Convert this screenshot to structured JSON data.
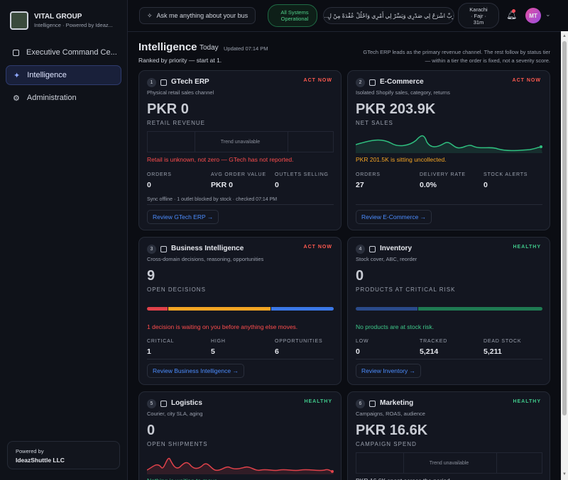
{
  "sidebar": {
    "brand": "VITAL GROUP",
    "tagline": "Intelligence · Powered by Ideaz...",
    "nav": [
      "Executive Command Ce...",
      "Intelligence",
      "Administration"
    ],
    "footer": {
      "label": "Powered by",
      "company": "IdeazShuttle LLC"
    }
  },
  "topbar": {
    "search": "Ask me anything about your bus",
    "status": "All Systems Operational",
    "verse": "رَبِّ اشْرَحْ لِي صَدْرِي وَيَسِّرْ لِي أَمْرِي وَاحْلُلْ عُقْدَةً مِنْ لِ...",
    "prayer": "Karachi · Fajr · 31m",
    "avatar": "MT"
  },
  "header": {
    "title": "Intelligence",
    "today": "Today",
    "updated": "Updated 07:14 PM",
    "subtitle": "Ranked by priority — start at 1.",
    "note": "GTech ERP leads as the primary revenue channel. The rest follow by status tier — within a tier the order is fixed, not a severity score."
  },
  "cards": [
    {
      "rank": "1",
      "title": "GTech ERP",
      "status": "ACT NOW",
      "subtitle": "Physical retail sales channel",
      "value": "PKR 0",
      "label": "RETAIL REVENUE",
      "trend": "Trend unavailable",
      "alert": "Retail is unknown, not zero — GTech has not reported.",
      "metrics": [
        {
          "label": "ORDERS",
          "value": "0"
        },
        {
          "label": "AVG ORDER VALUE",
          "value": "PKR 0"
        },
        {
          "label": "OUTLETS SELLING",
          "value": "0"
        }
      ],
      "footnote": "Sync offline · 1 outlet blocked by stock · checked 07:14 PM",
      "button": "Review GTech ERP →"
    },
    {
      "rank": "2",
      "title": "E-Commerce",
      "status": "ACT NOW",
      "subtitle": "Isolated Shopify sales, category, returns",
      "value": "PKR 203.9K",
      "label": "NET SALES",
      "alert": "PKR 201.5K is sitting uncollected.",
      "metrics": [
        {
          "label": "ORDERS",
          "value": "27"
        },
        {
          "label": "DELIVERY RATE",
          "value": "0.0%"
        },
        {
          "label": "STOCK ALERTS",
          "value": "0"
        }
      ],
      "button": "Review E-Commerce →"
    },
    {
      "rank": "3",
      "title": "Business Intelligence",
      "status": "ACT NOW",
      "subtitle": "Cross-domain decisions, reasoning, opportunities",
      "value": "9",
      "label": "OPEN DECISIONS",
      "alert": "1 decision is waiting on you before anything else moves.",
      "metrics": [
        {
          "label": "CRITICAL",
          "value": "1"
        },
        {
          "label": "HIGH",
          "value": "5"
        },
        {
          "label": "OPPORTUNITIES",
          "value": "6"
        }
      ],
      "button": "Review Business Intelligence →"
    },
    {
      "rank": "4",
      "title": "Inventory",
      "status": "HEALTHY",
      "subtitle": "Stock cover, ABC, reorder",
      "value": "0",
      "label": "PRODUCTS AT CRITICAL RISK",
      "alert": "No products are at stock risk.",
      "metrics": [
        {
          "label": "LOW",
          "value": "0"
        },
        {
          "label": "TRACKED",
          "value": "5,214"
        },
        {
          "label": "DEAD STOCK",
          "value": "5,211"
        }
      ],
      "button": "Review Inventory →"
    },
    {
      "rank": "5",
      "title": "Logistics",
      "status": "HEALTHY",
      "subtitle": "Courier, city SLA, aging",
      "value": "0",
      "label": "OPEN SHIPMENTS",
      "alert": "Nothing is waiting to move."
    },
    {
      "rank": "6",
      "title": "Marketing",
      "status": "HEALTHY",
      "subtitle": "Campaigns, ROAS, audience",
      "value": "PKR 16.6K",
      "label": "CAMPAIGN SPEND",
      "trend": "Trend unavailable",
      "alert": "PKR 16.6K spent across the period"
    }
  ]
}
